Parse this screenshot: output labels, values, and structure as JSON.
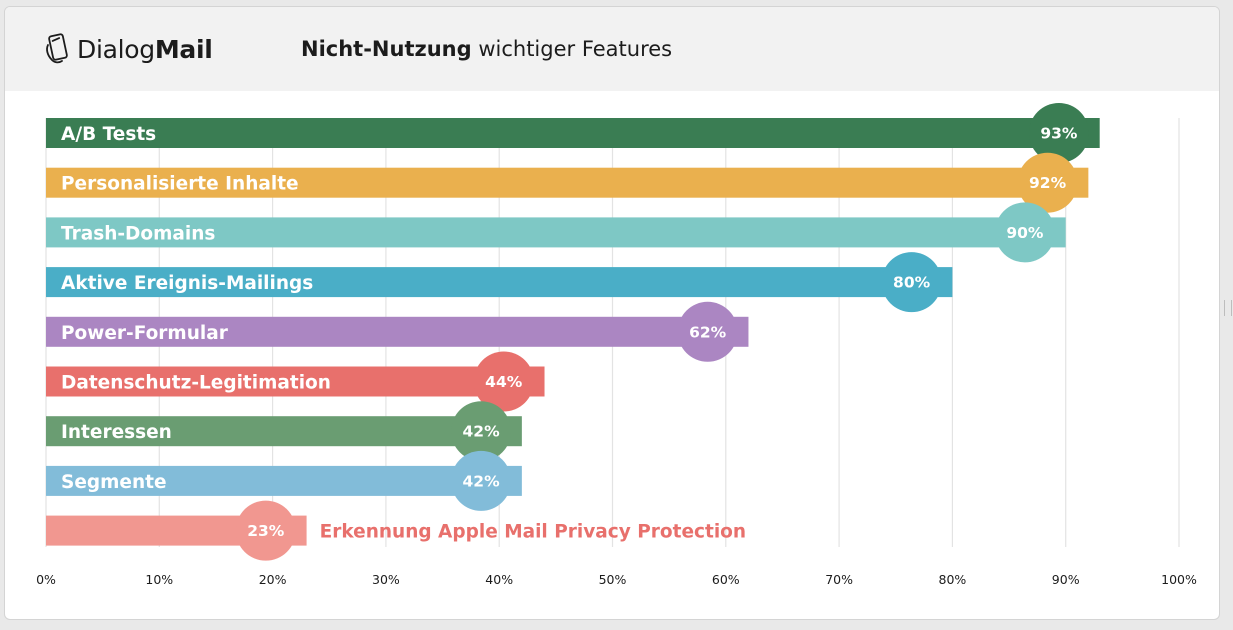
{
  "header": {
    "brand_regular": "Dialog",
    "brand_bold": "Mail",
    "title_bold": "Nicht-Nutzung",
    "title_rest": " wichtiger Features"
  },
  "chart_data": {
    "type": "bar",
    "orientation": "horizontal",
    "xlim": [
      0,
      100
    ],
    "x_ticks": [
      "0%",
      "10%",
      "20%",
      "30%",
      "40%",
      "50%",
      "60%",
      "70%",
      "80%",
      "90%",
      "100%"
    ],
    "grid": true,
    "bars": [
      {
        "category": "A/B Tests",
        "value": 93,
        "label": "93%",
        "color": "#3a7d53"
      },
      {
        "category": "Personalisierte Inhalte",
        "value": 92,
        "label": "92%",
        "color": "#eab04e"
      },
      {
        "category": "Trash-Domains",
        "value": 90,
        "label": "90%",
        "color": "#7ec8c5"
      },
      {
        "category": "Aktive Ereignis-Mailings",
        "value": 80,
        "label": "80%",
        "color": "#4aaec7"
      },
      {
        "category": "Power-Formular",
        "value": 62,
        "label": "62%",
        "color": "#ab86c2"
      },
      {
        "category": "Datenschutz-Legitimation",
        "value": 44,
        "label": "44%",
        "color": "#e8706c"
      },
      {
        "category": "Interessen",
        "value": 42,
        "label": "42%",
        "color": "#6a9d72"
      },
      {
        "category": "Segmente",
        "value": 42,
        "label": "42%",
        "color": "#82bcd9"
      },
      {
        "category": "Erkennung Apple Mail Privacy Protection",
        "value": 23,
        "label": "23%",
        "color": "#f19790",
        "text_color": "#e8706c"
      }
    ]
  }
}
